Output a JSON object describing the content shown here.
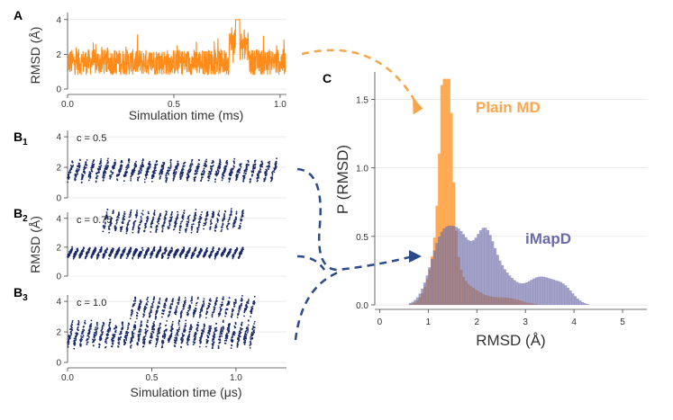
{
  "figure_labels": {
    "a": "A",
    "b1": "B",
    "b1_sub": "1",
    "b2": "B",
    "b2_sub": "2",
    "b3": "B",
    "b3_sub": "3",
    "c": "C"
  },
  "colors": {
    "orange": "#ff8c1a",
    "orange_light": "#ffa64d",
    "navy": "#1a2a6b",
    "purple": "#6b6ba8",
    "overlap": "#8a4a66",
    "arrow_orange": "#f5a64a",
    "arrow_navy": "#2a4a8a"
  },
  "chart_data": [
    {
      "id": "A",
      "type": "line",
      "title": "",
      "xlabel": "Simulation time (ms)",
      "ylabel": "RMSD (Å)",
      "xlim": [
        0,
        1.03
      ],
      "ylim": [
        0,
        4.3
      ],
      "xticks": [
        "0.0",
        "0.5",
        "1.0"
      ],
      "xtick_values": [
        0,
        0.5,
        1.0
      ],
      "yticks": [
        "0",
        "2",
        "4"
      ],
      "ytick_values": [
        0,
        2,
        4
      ],
      "series": [
        {
          "name": "Plain MD",
          "baseline": 1.55,
          "band": 0.75,
          "spike_at": 0.8,
          "spike_value": 4.0
        }
      ]
    },
    {
      "id": "B1",
      "type": "scatter",
      "annotation": "c = 0.5",
      "xlim": [
        0,
        1.3
      ],
      "ylim": [
        0,
        4.3
      ],
      "yticks": [
        "0",
        "2",
        "4"
      ],
      "ytick_values": [
        0,
        2,
        4
      ],
      "series": [
        {
          "name": "iMapD",
          "x_max": 1.25,
          "low": 1.0,
          "high": 2.5,
          "upper_low": null,
          "upper_high": null
        }
      ]
    },
    {
      "id": "B2",
      "type": "scatter",
      "annotation": "c = 0.75",
      "xlim": [
        0,
        1.3
      ],
      "ylim": [
        0,
        4.3
      ],
      "yticks": [
        "0",
        "2",
        "4"
      ],
      "ytick_values": [
        0,
        2,
        4
      ],
      "series": [
        {
          "name": "iMapD",
          "x_max": 1.05,
          "low": 1.2,
          "high": 2.0,
          "upper_low": 3.0,
          "upper_high": 4.6,
          "upper_start": 0.18
        }
      ]
    },
    {
      "id": "B3",
      "type": "scatter",
      "annotation": "c = 1.0",
      "xlabel": "Simulation time (μs)",
      "ylabel": "RMSD (Å)",
      "xlim": [
        0,
        1.3
      ],
      "ylim": [
        0,
        4.3
      ],
      "xticks": [
        "0.0",
        "0.5",
        "1.0"
      ],
      "xtick_values": [
        0,
        0.5,
        1.0
      ],
      "yticks": [
        "0",
        "2",
        "4"
      ],
      "ytick_values": [
        0,
        2,
        4
      ],
      "series": [
        {
          "name": "iMapD",
          "x_max": 1.12,
          "low": 0.9,
          "high": 2.7,
          "upper_low": 2.9,
          "upper_high": 4.3,
          "upper_start": 0.35
        }
      ]
    },
    {
      "id": "C",
      "type": "histogram",
      "xlabel": "RMSD (Å)",
      "ylabel": "P (RMSD)",
      "xlim": [
        -0.1,
        5.5
      ],
      "ylim": [
        0,
        1.7
      ],
      "xticks": [
        "0",
        "1",
        "2",
        "3",
        "4",
        "5"
      ],
      "xtick_values": [
        0,
        1,
        2,
        3,
        4,
        5
      ],
      "yticks": [
        "0.0",
        "0.5",
        "1.0",
        "1.5"
      ],
      "ytick_values": [
        0,
        0.5,
        1.0,
        1.5
      ],
      "bin_width": 0.05,
      "series": [
        {
          "name": "Plain MD",
          "legend": "Plain MD",
          "peaks": [
            {
              "center": 1.37,
              "height": 1.62,
              "width": 0.1
            },
            {
              "center": 1.3,
              "height": 0.55,
              "width": 0.22
            },
            {
              "center": 1.8,
              "height": 0.12,
              "width": 0.3
            },
            {
              "center": 2.6,
              "height": 0.05,
              "width": 0.3
            }
          ]
        },
        {
          "name": "iMapD",
          "legend": "iMapD",
          "peaks": [
            {
              "center": 1.3,
              "height": 0.5,
              "width": 0.25
            },
            {
              "center": 1.7,
              "height": 0.35,
              "width": 0.2
            },
            {
              "center": 2.15,
              "height": 0.48,
              "width": 0.2
            },
            {
              "center": 2.55,
              "height": 0.2,
              "width": 0.25
            },
            {
              "center": 3.3,
              "height": 0.2,
              "width": 0.3
            },
            {
              "center": 3.8,
              "height": 0.1,
              "width": 0.2
            }
          ]
        }
      ]
    }
  ]
}
